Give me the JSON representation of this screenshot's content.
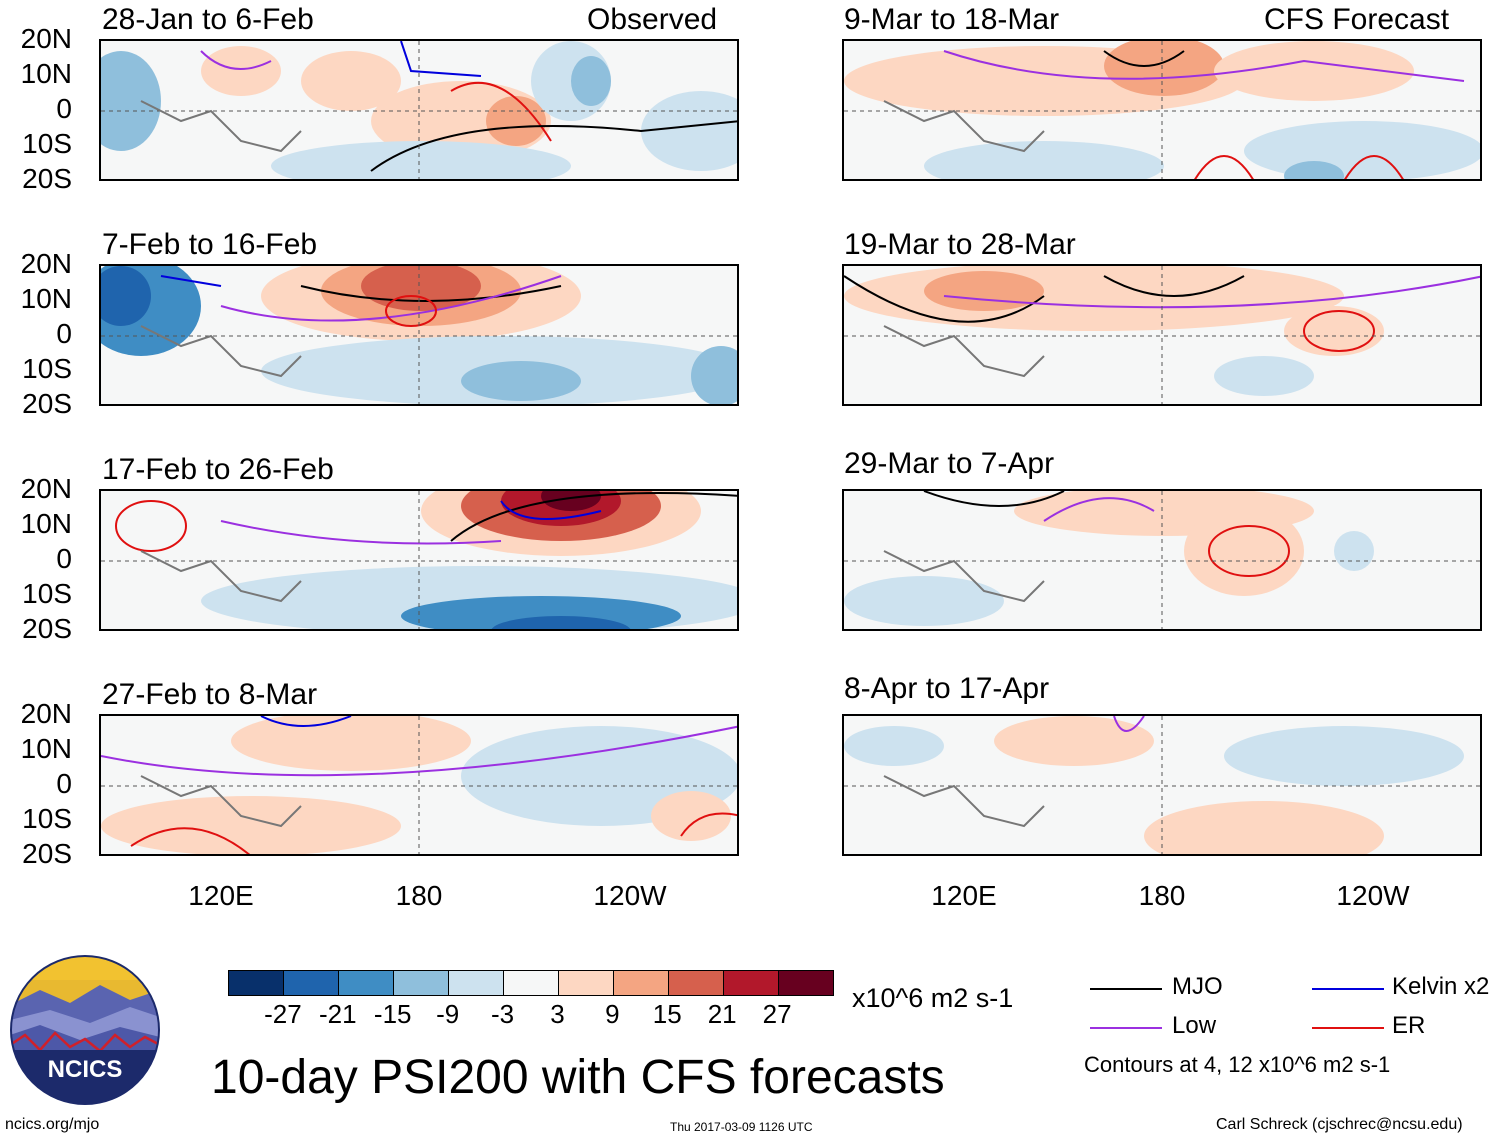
{
  "panels": [
    {
      "title": "28-Jan to 6-Feb",
      "tag": "Observed"
    },
    {
      "title": "7-Feb to 16-Feb",
      "tag": ""
    },
    {
      "title": "17-Feb to 26-Feb",
      "tag": ""
    },
    {
      "title": "27-Feb to 8-Mar",
      "tag": ""
    },
    {
      "title": "9-Mar to 18-Mar",
      "tag": "CFS Forecast"
    },
    {
      "title": "19-Mar to 28-Mar",
      "tag": ""
    },
    {
      "title": "29-Mar to 7-Apr",
      "tag": ""
    },
    {
      "title": "8-Apr to 17-Apr",
      "tag": ""
    }
  ],
  "lat_labels": [
    "20N",
    "10N",
    "0",
    "10S",
    "20S"
  ],
  "lon_labels": [
    "120E",
    "180",
    "120W"
  ],
  "colorbar": {
    "colors": [
      "#08306b",
      "#1f64ad",
      "#3f8dc4",
      "#8fbfdc",
      "#cde2ef",
      "#f6f7f7",
      "#fdd7c2",
      "#f4a582",
      "#d6604d",
      "#b2182b",
      "#67001f"
    ],
    "labels": [
      "-27",
      "-21",
      "-15",
      "-9",
      "-3",
      "3",
      "9",
      "15",
      "21",
      "27"
    ],
    "units": "x10^6 m2 s-1"
  },
  "legend": {
    "mjo": "MJO",
    "kelvin": "Kelvin x2",
    "low": "Low",
    "er": "ER",
    "contours": "Contours at 4, 12 x10^6 m2 s-1",
    "colors": {
      "mjo": "#000000",
      "kelvin": "#0000dd",
      "low": "#9b30e0",
      "er": "#e01010"
    }
  },
  "logo": {
    "text": "NCICS"
  },
  "main_title": "10-day PSI200 with CFS forecasts",
  "footer": {
    "url": "ncics.org/mjo",
    "timestamp": "Thu 2017-03-09 1126 UTC",
    "author": "Carl Schreck (cjschrec@ncsu.edu)"
  }
}
